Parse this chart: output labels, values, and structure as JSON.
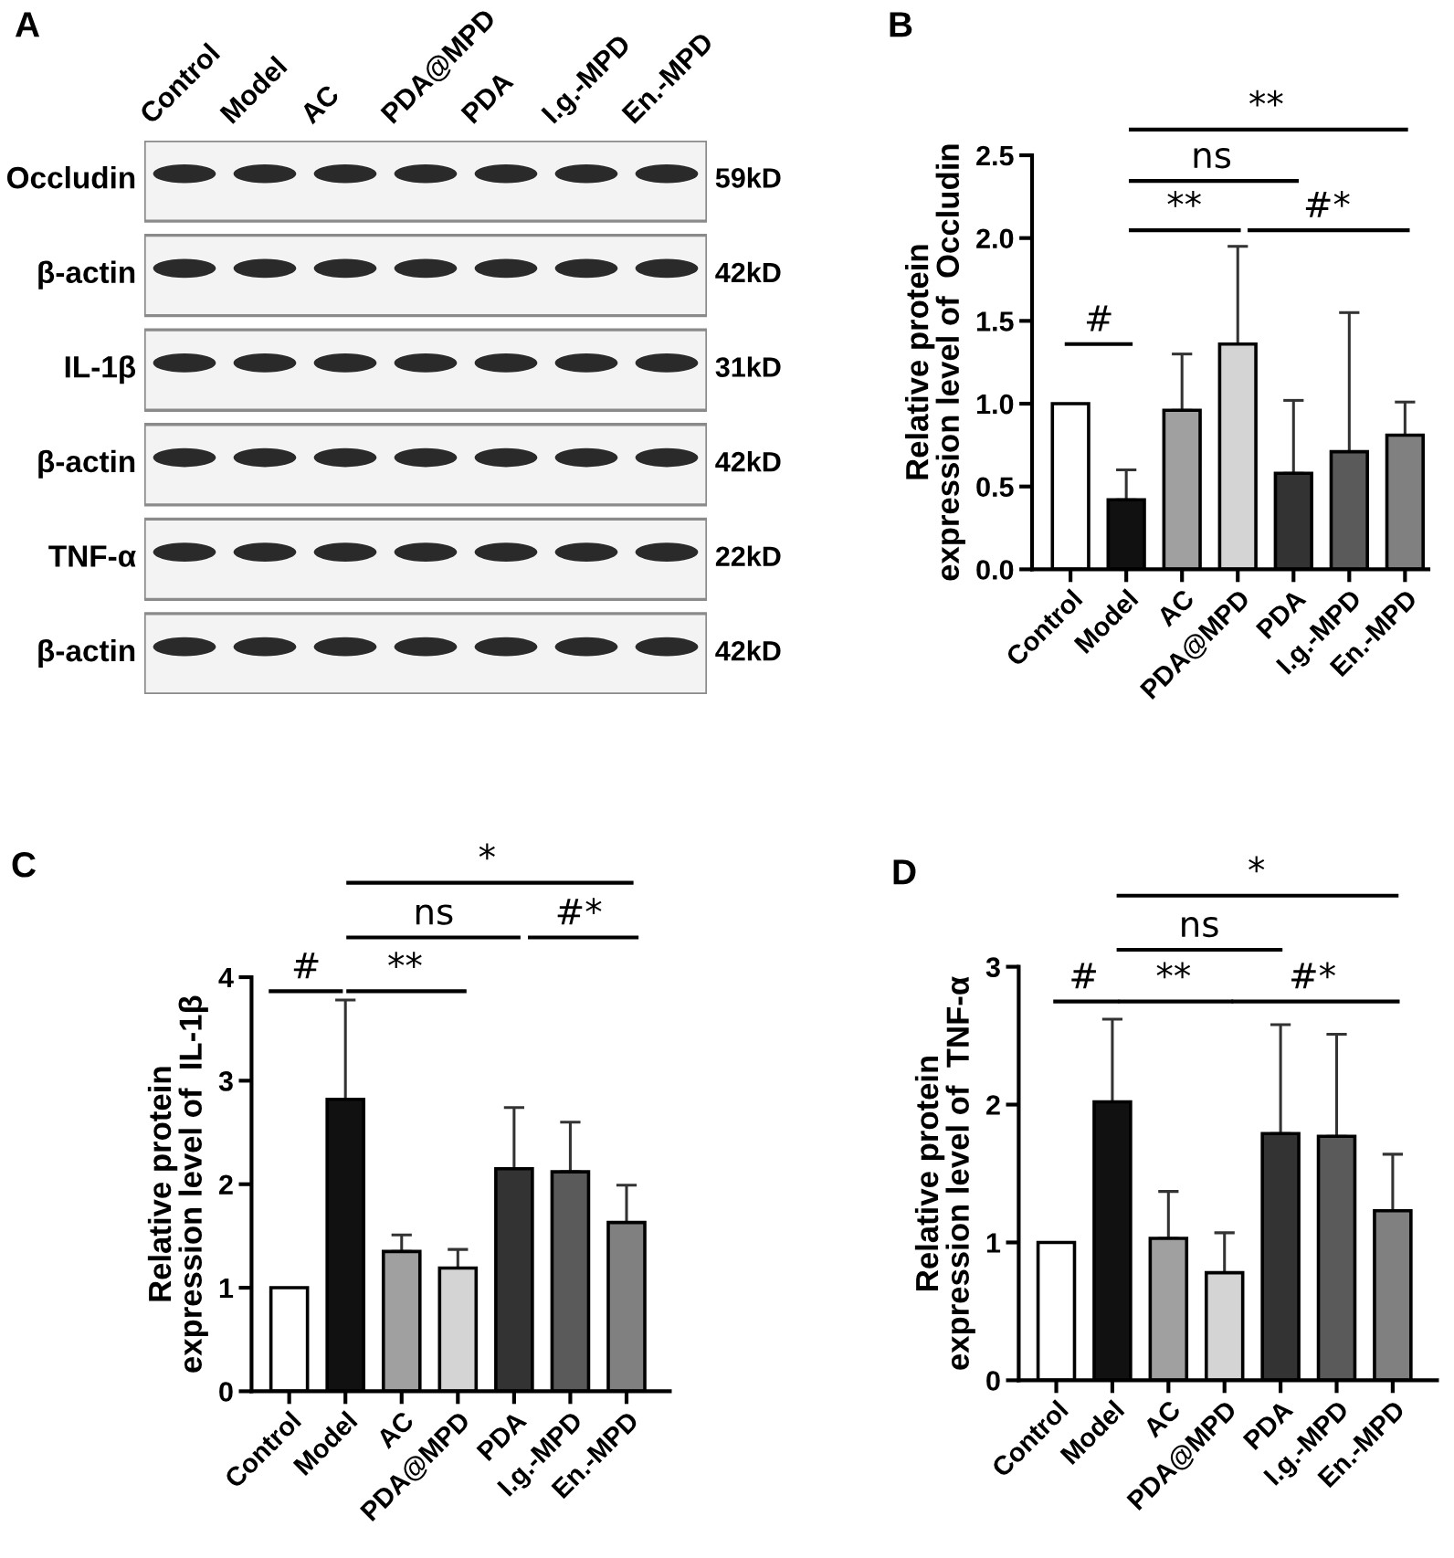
{
  "chart_data": [
    {
      "type": "other",
      "title": "A",
      "categories": [
        "Control",
        "Model",
        "AC",
        "PDA@MPD",
        "PDA",
        "I.g.-MPD",
        "En.-MPD"
      ],
      "y_categories": [
        "Occludin",
        "β-actin",
        "IL-1β",
        "β-actin",
        "TNF-α",
        "β-actin"
      ],
      "y2_categories": [
        "59kD",
        "42kD",
        "31kD",
        "42kD",
        "22kD",
        "42kD"
      ]
    },
    {
      "type": "bar",
      "title": "B",
      "ylabel": "Relative protein\nexpression level of  Occludin",
      "categories": [
        "Control",
        "Model",
        "AC",
        "PDA@MPD",
        "PDA",
        "I.g.-MPD",
        "En.-MPD"
      ],
      "values": [
        1.0,
        0.42,
        0.96,
        1.36,
        0.58,
        0.71,
        0.81
      ],
      "colors": [
        "#ffffff",
        "#111111",
        "#a0a0a0",
        "#d4d4d4",
        "#333333",
        "#5a5a5a",
        "#808080"
      ],
      "errors": [
        null,
        [
          0.42,
          0.6
        ],
        [
          0.96,
          1.3
        ],
        [
          1.36,
          1.95
        ],
        [
          0.58,
          1.02
        ],
        [
          0.71,
          1.55
        ],
        [
          0.81,
          1.01
        ]
      ],
      "ylim": [
        0,
        2.5
      ],
      "yticks": [
        {
          "value": 0,
          "label": "0.0"
        },
        {
          "value": 0.5,
          "label": "0.5"
        },
        {
          "value": 1,
          "label": "1.0"
        },
        {
          "value": 1.5,
          "label": "1.5"
        },
        {
          "value": 2,
          "label": "2.0"
        },
        {
          "value": 2.5,
          "label": "2.5"
        }
      ],
      "annotations": [
        "**",
        "ns",
        "**",
        "#*",
        "#"
      ]
    },
    {
      "type": "bar",
      "title": "C",
      "ylabel": "Relative protein\nexpression level of  IL-1β",
      "categories": [
        "Control",
        "Model",
        "AC",
        "PDA@MPD",
        "PDA",
        "I.g.-MPD",
        "En.-MPD"
      ],
      "values": [
        1.0,
        2.82,
        1.35,
        1.19,
        2.15,
        2.12,
        1.63
      ],
      "colors": [
        "#ffffff",
        "#111111",
        "#a0a0a0",
        "#d4d4d4",
        "#333333",
        "#5a5a5a",
        "#808080"
      ],
      "errors": [
        null,
        [
          2.82,
          3.78
        ],
        [
          1.35,
          1.51
        ],
        [
          1.19,
          1.37
        ],
        [
          2.15,
          2.74
        ],
        [
          2.12,
          2.6
        ],
        [
          1.63,
          1.99
        ]
      ],
      "ylim": [
        0,
        4
      ],
      "yticks": [
        0,
        1,
        2,
        3,
        4
      ],
      "annotations": [
        "*",
        "ns",
        "#*",
        "#",
        "**"
      ]
    },
    {
      "type": "bar",
      "title": "D",
      "ylabel": "Relative protein\nexpression level of  TNF-α",
      "categories": [
        "Control",
        "Model",
        "AC",
        "PDA@MPD",
        "PDA",
        "I.g.-MPD",
        "En.-MPD"
      ],
      "values": [
        1.0,
        2.02,
        1.03,
        0.78,
        1.79,
        1.77,
        1.23
      ],
      "colors": [
        "#ffffff",
        "#111111",
        "#a0a0a0",
        "#d4d4d4",
        "#333333",
        "#5a5a5a",
        "#808080"
      ],
      "errors": [
        null,
        [
          2.02,
          2.62
        ],
        [
          1.03,
          1.37
        ],
        [
          0.78,
          1.07
        ],
        [
          1.79,
          2.58
        ],
        [
          1.77,
          2.51
        ],
        [
          1.23,
          1.64
        ]
      ],
      "ylim": [
        0,
        3
      ],
      "yticks": [
        0,
        1,
        2,
        3
      ],
      "annotations": [
        "*",
        "ns",
        "#",
        "**",
        "#*"
      ]
    }
  ]
}
